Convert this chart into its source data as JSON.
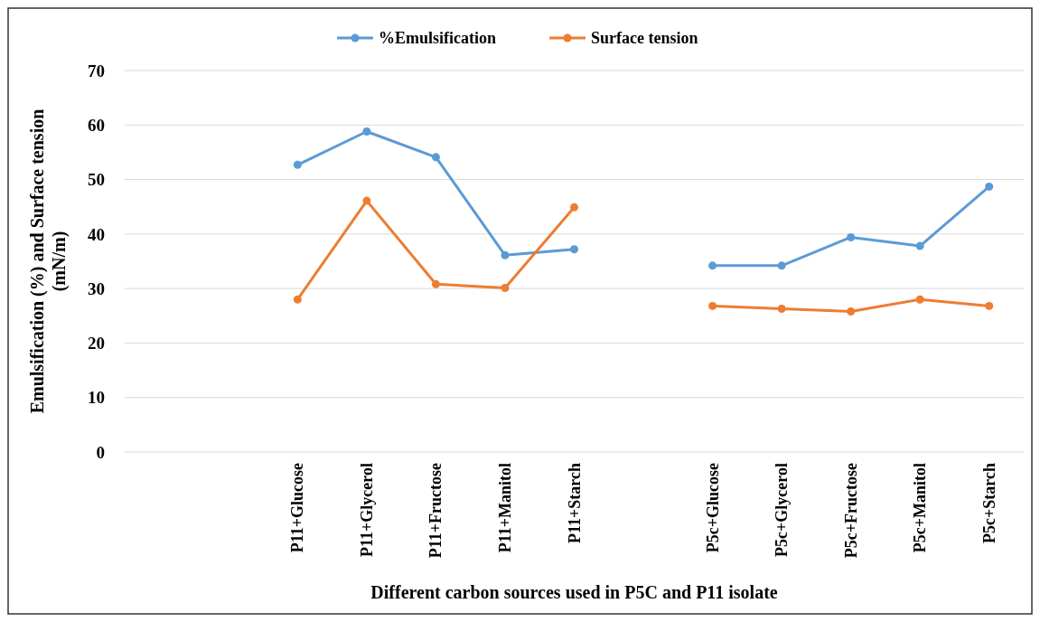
{
  "chart_data": {
    "type": "line",
    "xlabel": "Different carbon sources used in P5C and P11 isolate",
    "ylabel": "Emulsification (%) and Surface tension (mN/m)",
    "categories": [
      null,
      null,
      "P11+Glucose",
      "P11+Glycerol",
      "P11+Fructose",
      "P11+Manitol",
      "P11+Starch",
      null,
      "P5c+Glucose",
      "P5c+Glycerol",
      "P5c+Fructose",
      "P5c+Manitol",
      "P5c+Starch"
    ],
    "series": [
      {
        "name": "%Emulsification",
        "color": "#5b9bd5",
        "values": [
          null,
          null,
          52.7,
          58.8,
          54.1,
          36.1,
          37.2,
          null,
          34.2,
          34.2,
          39.4,
          37.8,
          48.7
        ]
      },
      {
        "name": "Surface tension",
        "color": "#ed7d31",
        "values": [
          null,
          null,
          28.0,
          46.1,
          30.8,
          30.1,
          44.9,
          null,
          26.8,
          26.3,
          25.8,
          28.0,
          26.8
        ]
      }
    ],
    "ylim": [
      0,
      70
    ],
    "yticks": [
      0,
      10,
      20,
      30,
      40,
      50,
      60,
      70
    ],
    "grid": "y",
    "legend": "top",
    "marker": "circle",
    "line_style": "solid"
  }
}
